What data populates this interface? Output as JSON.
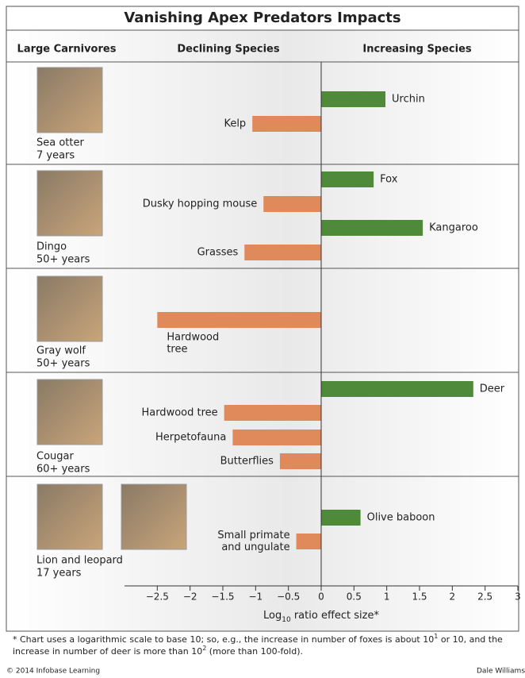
{
  "chart_data": {
    "type": "bar",
    "orientation": "horizontal",
    "title": "Vanishing Apex Predators Impacts",
    "headers": [
      "Large Carnivores",
      "Declining Species",
      "Increasing Species"
    ],
    "increasing_color": "#4f8a3a",
    "declining_color": "#e0895a",
    "groups": [
      {
        "carnivore": "Sea otter",
        "duration": "7 years",
        "bars": [
          {
            "label": [
              "Urchin"
            ],
            "value": 0.98
          },
          {
            "label": [
              "Kelp"
            ],
            "value": -1.05
          }
        ]
      },
      {
        "carnivore": "Dingo",
        "duration": "50+ years",
        "bars": [
          {
            "label": [
              "Fox"
            ],
            "value": 0.8
          },
          {
            "label": [
              "Dusky hopping mouse"
            ],
            "value": -0.88
          },
          {
            "label": [
              "Kangaroo"
            ],
            "value": 1.55
          },
          {
            "label": [
              "Grasses"
            ],
            "value": -1.17
          }
        ]
      },
      {
        "carnivore": "Gray wolf",
        "duration": "50+ years",
        "bars": [
          {
            "label": [
              "Hardwood",
              "tree"
            ],
            "value": -2.5
          }
        ]
      },
      {
        "carnivore": "Cougar",
        "duration": "60+ years",
        "bars": [
          {
            "label": [
              "Deer"
            ],
            "value": 2.32
          },
          {
            "label": [
              "Hardwood tree"
            ],
            "value": -1.48
          },
          {
            "label": [
              "Herpetofauna"
            ],
            "value": -1.35
          },
          {
            "label": [
              "Butterflies"
            ],
            "value": -0.63
          }
        ]
      },
      {
        "carnivore": "Lion and leopard",
        "duration": "17 years",
        "bars": [
          {
            "label": [
              "Olive baboon"
            ],
            "value": 0.6
          },
          {
            "label": [
              "Small primate",
              "and ungulate"
            ],
            "value": -0.38
          }
        ]
      }
    ],
    "xlim": [
      -3,
      3
    ],
    "xticks": [
      {
        "value": -2.5,
        "label": "−2.5"
      },
      {
        "value": -2,
        "label": "−2"
      },
      {
        "value": -1.5,
        "label": "−1.5"
      },
      {
        "value": -1,
        "label": "−1"
      },
      {
        "value": -0.5,
        "label": "−0.5"
      },
      0,
      0.5,
      1,
      1.5,
      2,
      2.5,
      3
    ],
    "x_label": [
      "Log",
      "10",
      " ratio effect size*"
    ],
    "footnote": [
      [
        "* Chart uses a logarithmic scale to base 10; so, e.g., the increase in number of foxes is about 10",
        "1",
        " or 10, and the"
      ],
      [
        "increase in number of deer is more than 10",
        "2",
        " (more than 100-fold)."
      ]
    ],
    "credit_left": "© 2014 Infobase Learning",
    "credit_right": "Dale Williams"
  }
}
